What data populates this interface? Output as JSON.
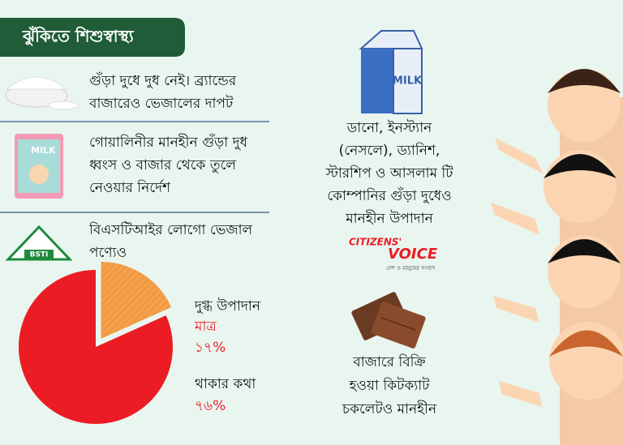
{
  "header": {
    "title": "ঝুঁকিতে শিশুস্বাস্থ্য"
  },
  "items": [
    {
      "lines": [
        "গুঁড়া দুধে দুধ নেই। ব্র্যান্ডের",
        "বাজারেও ভেজালের দাপট"
      ]
    },
    {
      "lines": [
        "গোয়ালিনীর মানহীন গুঁড়া দুধ",
        "ধ্বংস ও বাজার থেকে তুলে",
        "নেওয়ার নির্দেশ"
      ],
      "icon_text": "MILK"
    },
    {
      "lines": [
        "বিএসটিআইর লোগো ভেজাল",
        "পণ্যেও"
      ],
      "icon_text": "BSTI"
    }
  ],
  "right": {
    "carton_text": "MILK",
    "milk_lines": [
      "ডানো, ইনস্ট্যান",
      "(নেসলে), ড্যানিশ,",
      "স্টারশিপ ও আসলাম টি",
      "কোম্পানির গুঁড়া দুধেও",
      "মানহীন উপাদান"
    ],
    "logo": {
      "word1": "CITIZENS'",
      "word2": "VOICE",
      "tagline": "দেশ ও মানুষের সংবাদ"
    },
    "chocolate_lines": [
      "বাজারে বিক্রি",
      "হওয়া কিটক্যাট",
      "চকলেটও মানহীন"
    ]
  },
  "chart_data": {
    "type": "pie",
    "categories": [
      "দুগ্ধ উপাদান",
      "থাকার কথা"
    ],
    "annotation": "মাত্র",
    "values": [
      17,
      76
    ],
    "value_labels": [
      "১৭%",
      "৭৬%"
    ],
    "colors": [
      "#f5a04a",
      "#ec1c24"
    ]
  }
}
